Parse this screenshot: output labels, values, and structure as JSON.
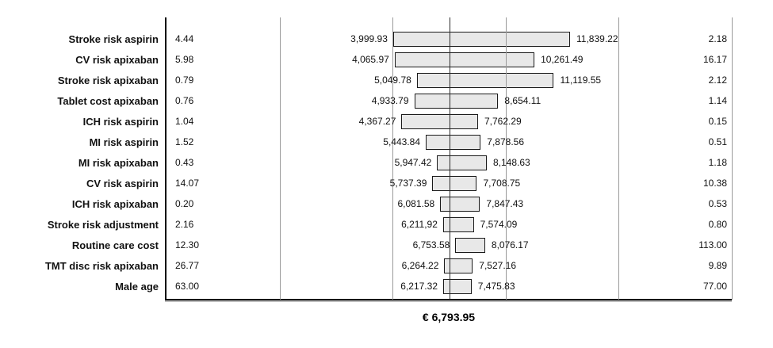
{
  "chart_data": {
    "type": "bar",
    "variant": "tornado",
    "title": "",
    "xlabel": "",
    "ylabel": "",
    "legend": "none",
    "grid": true,
    "baseline_label": "€ 6,793.95",
    "baseline_value": 6793.95,
    "axis": {
      "min": -6050,
      "max": 19010,
      "gridline_divisions": 5
    },
    "colors": {
      "bar_fill": "#e8e8e8",
      "bar_border": "#1a1a1a",
      "gridline": "#9a9a9a",
      "axis": "#000000"
    },
    "rows": [
      {
        "label": "Stroke risk aspirin",
        "low_value": "4.44",
        "high_value": "2.18",
        "ev_low": 3999.93,
        "ev_high": 11839.22,
        "ev_low_label": "3,999.93",
        "ev_high_label": "11,839.22"
      },
      {
        "label": "CV risk apixaban",
        "low_value": "5.98",
        "high_value": "16.17",
        "ev_low": 4065.97,
        "ev_high": 10261.49,
        "ev_low_label": "4,065.97",
        "ev_high_label": "10,261.49"
      },
      {
        "label": "Stroke risk apixaban",
        "low_value": "0.79",
        "high_value": "2.12",
        "ev_low": 5049.78,
        "ev_high": 11119.55,
        "ev_low_label": "5,049.78",
        "ev_high_label": "11,119.55"
      },
      {
        "label": "Tablet cost apixaban",
        "low_value": "0.76",
        "high_value": "1.14",
        "ev_low": 4933.79,
        "ev_high": 8654.11,
        "ev_low_label": "4,933.79",
        "ev_high_label": "8,654.11"
      },
      {
        "label": "ICH risk aspirin",
        "low_value": "1.04",
        "high_value": "0.15",
        "ev_low": 4367.27,
        "ev_high": 7762.29,
        "ev_low_label": "4,367.27",
        "ev_high_label": "7,762.29"
      },
      {
        "label": "MI risk aspirin",
        "low_value": "1.52",
        "high_value": "0.51",
        "ev_low": 5443.84,
        "ev_high": 7878.56,
        "ev_low_label": "5,443.84",
        "ev_high_label": "7,878.56"
      },
      {
        "label": "MI risk apixaban",
        "low_value": "0.43",
        "high_value": "1.18",
        "ev_low": 5947.42,
        "ev_high": 8148.63,
        "ev_low_label": "5,947.42",
        "ev_high_label": "8,148.63"
      },
      {
        "label": "CV risk aspirin",
        "low_value": "14.07",
        "high_value": "10.38",
        "ev_low": 5737.39,
        "ev_high": 7708.75,
        "ev_low_label": "5,737.39",
        "ev_high_label": "7,708.75"
      },
      {
        "label": "ICH risk apixaban",
        "low_value": "0.20",
        "high_value": "0.53",
        "ev_low": 6081.58,
        "ev_high": 7847.43,
        "ev_low_label": "6,081.58",
        "ev_high_label": "7,847.43"
      },
      {
        "label": "Stroke risk adjustment",
        "low_value": "2.16",
        "high_value": "0.80",
        "ev_low": 6211.92,
        "ev_high": 7574.09,
        "ev_low_label": "6,211,92",
        "ev_high_label": "7,574.09"
      },
      {
        "label": "Routine care cost",
        "low_value": "12.30",
        "high_value": "113.00",
        "ev_low": 6753.58,
        "ev_high": 8076.17,
        "ev_low_label": "6,753.58",
        "ev_high_label": "8,076.17"
      },
      {
        "label": "TMT disc risk apixaban",
        "low_value": "26.77",
        "high_value": "9.89",
        "ev_low": 6264.22,
        "ev_high": 7527.16,
        "ev_low_label": "6,264.22",
        "ev_high_label": "7,527.16"
      },
      {
        "label": "Male age",
        "low_value": "63.00",
        "high_value": "77.00",
        "ev_low": 6217.32,
        "ev_high": 7475.83,
        "ev_low_label": "6,217.32",
        "ev_high_label": "7,475.83"
      }
    ]
  }
}
